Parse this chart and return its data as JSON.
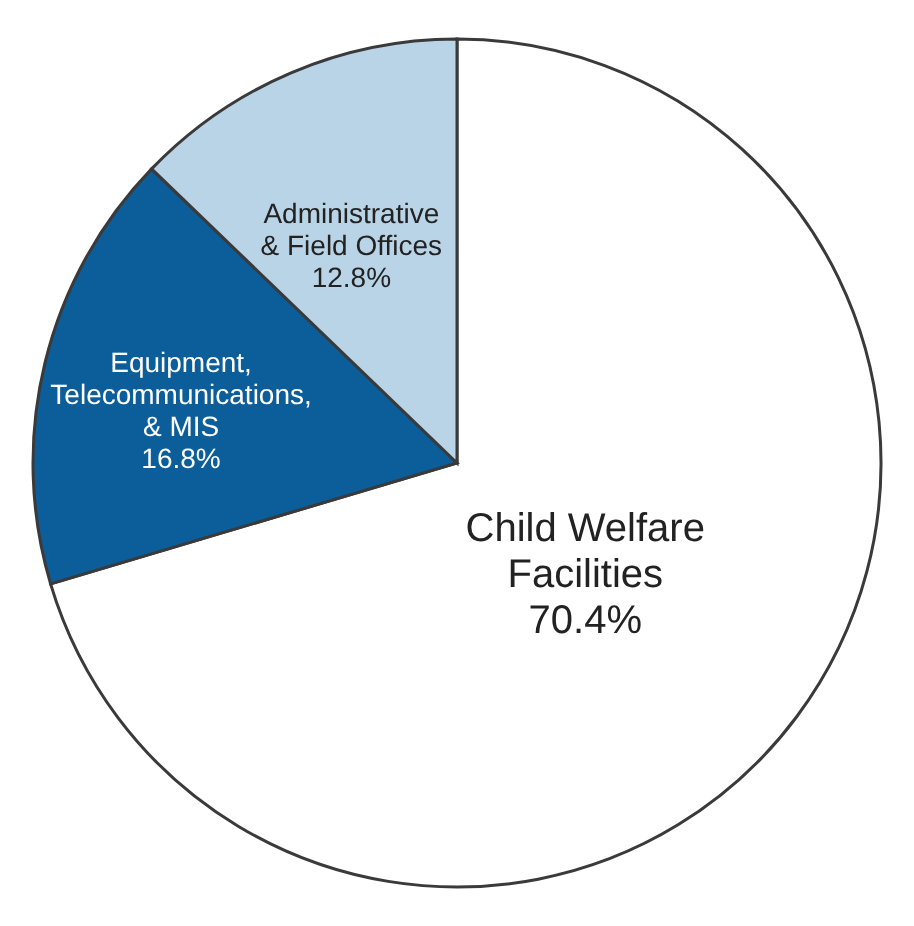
{
  "chart_data": {
    "type": "pie",
    "categories": [
      "Child Welfare Facilities",
      "Equipment, Telecommunications, & MIS",
      "Administrative & Field Offices"
    ],
    "values": [
      70.4,
      16.8,
      12.8
    ],
    "colors": [
      "#ffffff",
      "#0b5e99",
      "#b9d4e7"
    ],
    "value_labels": [
      "70.4%",
      "16.8%",
      "12.8%"
    ],
    "legend": false
  }
}
